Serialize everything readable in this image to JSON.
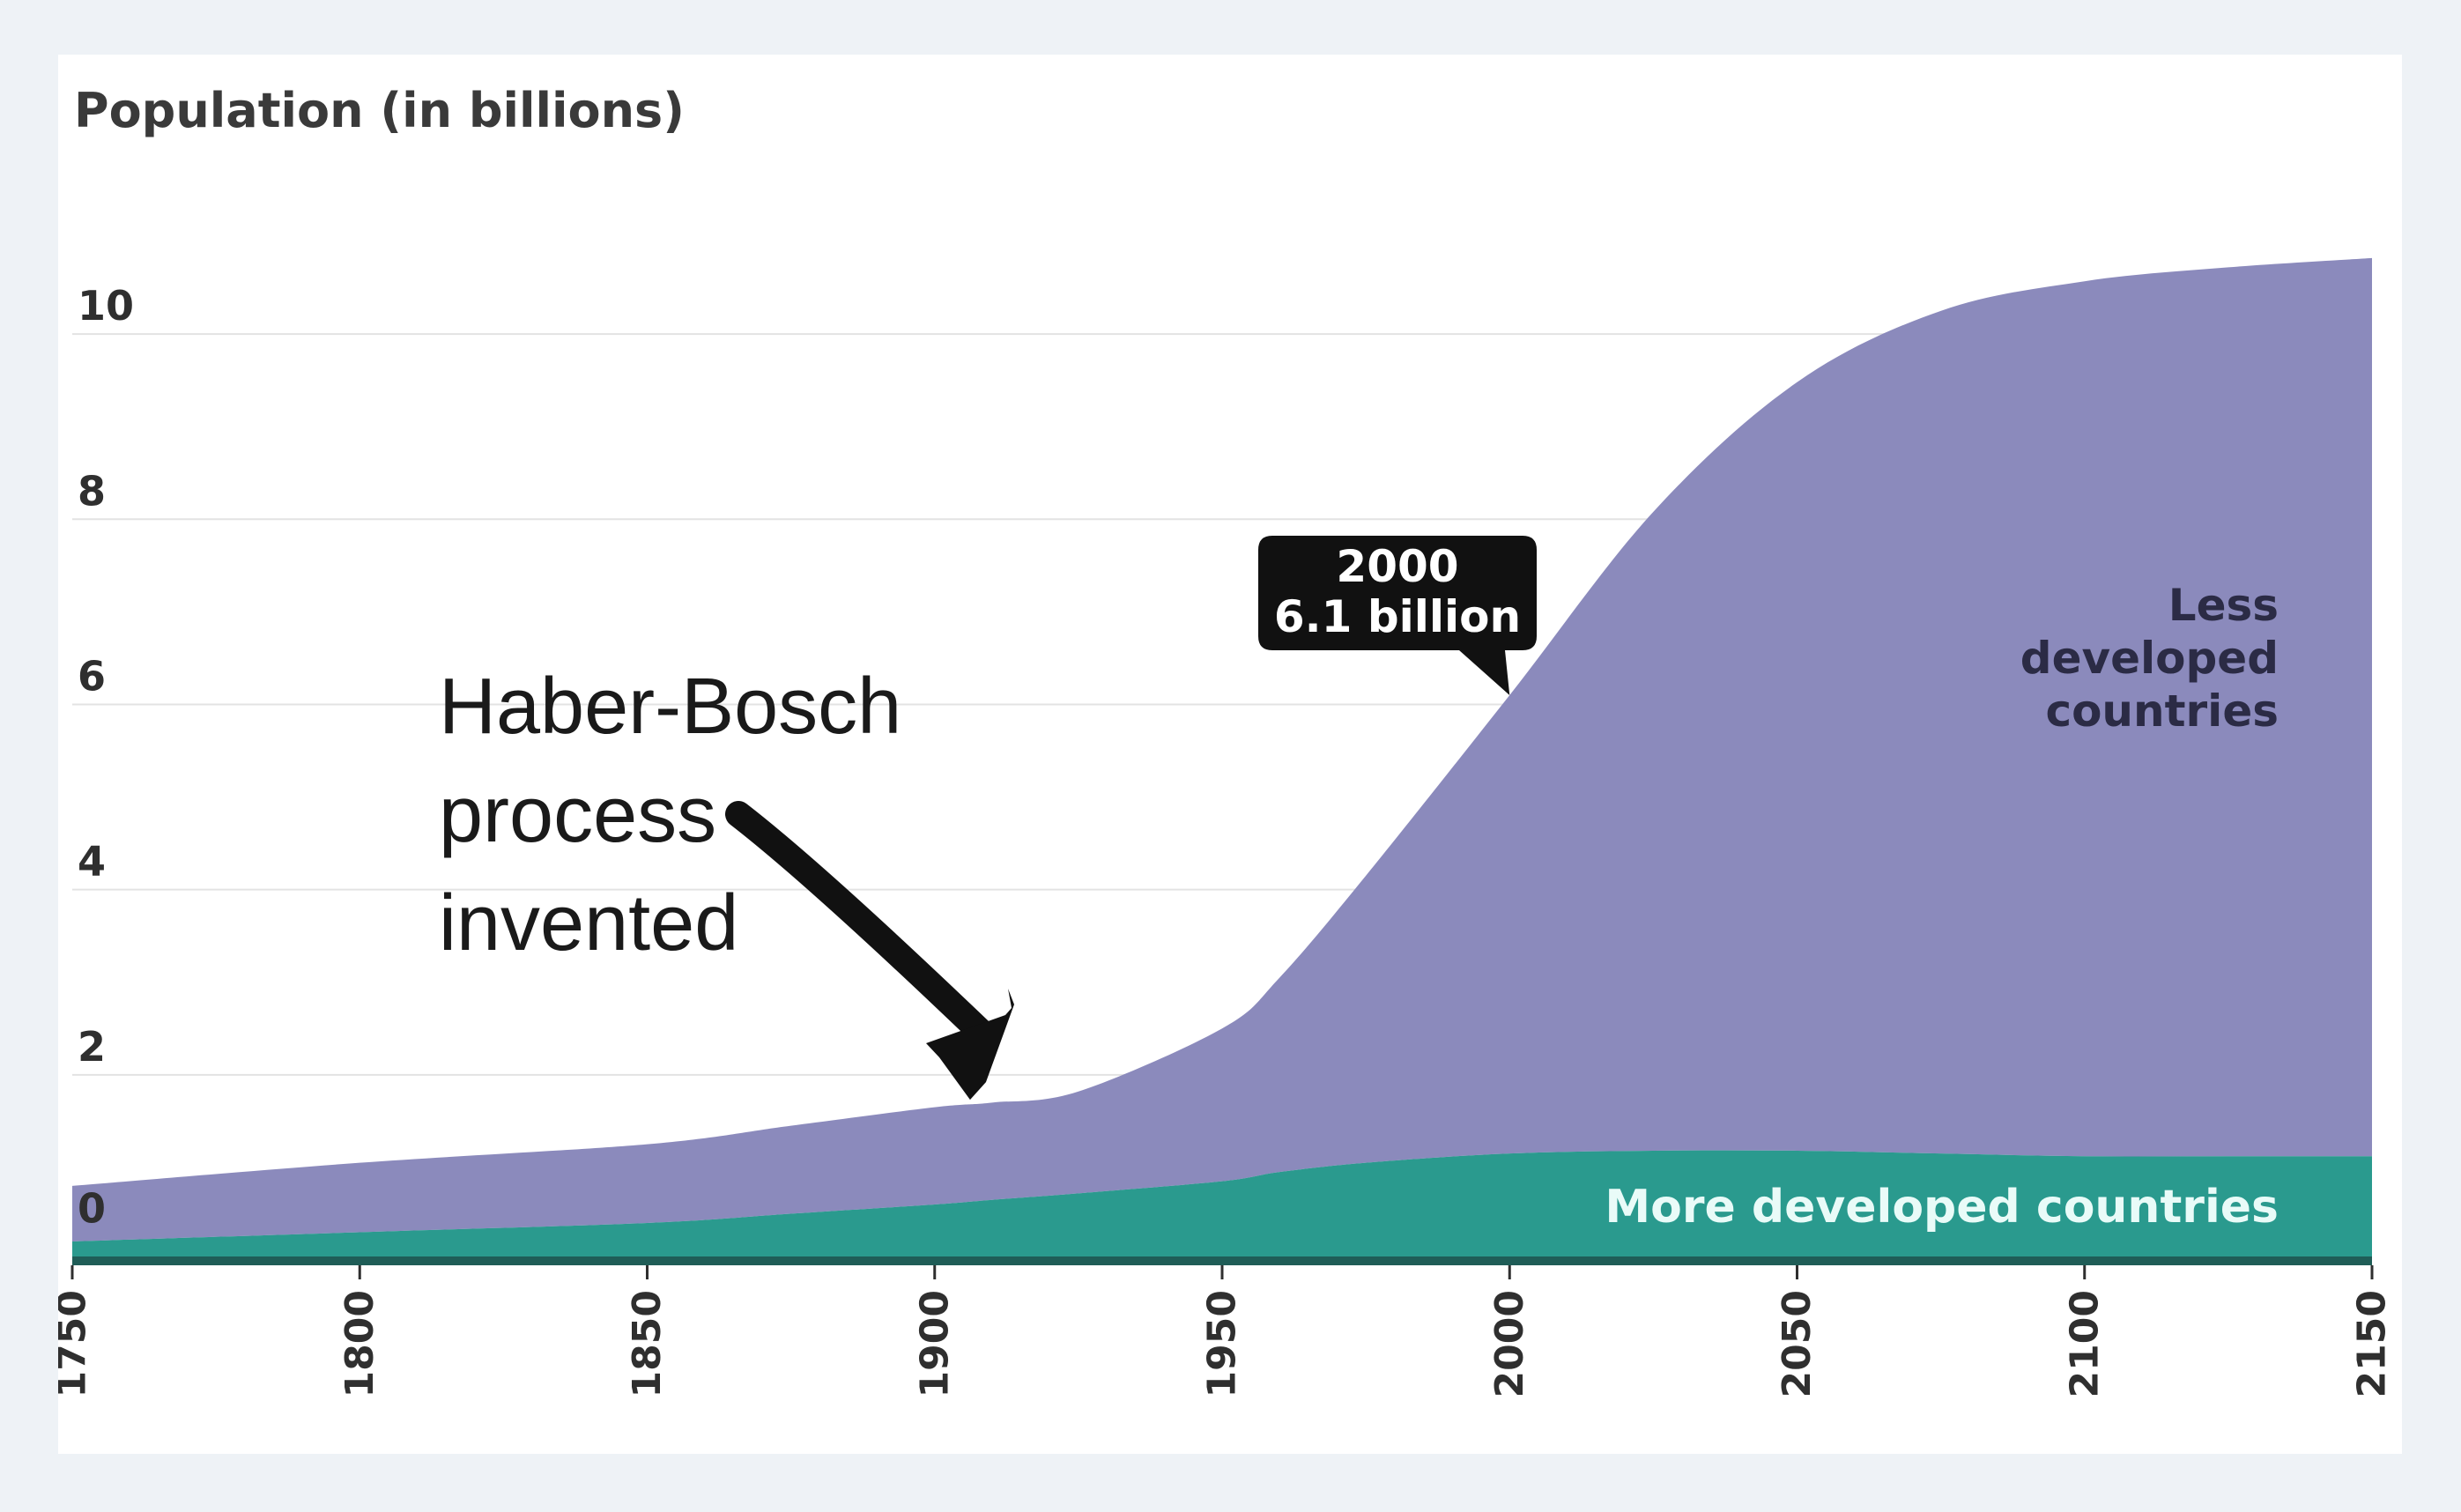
{
  "chart_data": {
    "type": "area",
    "stacked": true,
    "ylabel": "Population (in billions)",
    "xlabel": "",
    "xlim": [
      1750,
      2150
    ],
    "ylim": [
      0,
      11
    ],
    "yticks": [
      0,
      2,
      4,
      6,
      8,
      10
    ],
    "xticks": [
      1750,
      1800,
      1850,
      1900,
      1950,
      2000,
      2050,
      2100,
      2150
    ],
    "grid": true,
    "x": [
      1750,
      1800,
      1850,
      1875,
      1900,
      1910,
      1925,
      1950,
      1960,
      1975,
      2000,
      2025,
      2050,
      2075,
      2100,
      2125,
      2150
    ],
    "series": [
      {
        "name": "More developed countries",
        "color": "#2a9a8e",
        "values": [
          0.2,
          0.3,
          0.4,
          0.5,
          0.6,
          0.65,
          0.72,
          0.85,
          0.95,
          1.05,
          1.15,
          1.18,
          1.18,
          1.15,
          1.12,
          1.12,
          1.12
        ]
      },
      {
        "name": "Less developed countries",
        "color": "#8b8abc",
        "values": [
          0.6,
          0.75,
          0.85,
          0.95,
          1.05,
          1.05,
          1.1,
          1.65,
          2.1,
          3.1,
          4.95,
          6.9,
          8.3,
          9.1,
          9.45,
          9.6,
          9.7
        ]
      }
    ],
    "series_labels": {
      "less_developed": [
        "Less",
        "developed",
        "countries"
      ],
      "more_developed": "More developed countries"
    },
    "callout": {
      "year_label": "2000",
      "value_label": "6.1 billion",
      "x": 2000,
      "y": 6.1
    },
    "annotation": {
      "lines": [
        "Haber-Bosch",
        "process",
        "invented"
      ],
      "target_x": 1908,
      "target_y": 1.75
    }
  },
  "colors": {
    "background": "#ffffff",
    "gridline": "#e3e3e3",
    "baseline": "#1f5d57",
    "callout_bg": "#111111",
    "arrow": "#111111"
  }
}
